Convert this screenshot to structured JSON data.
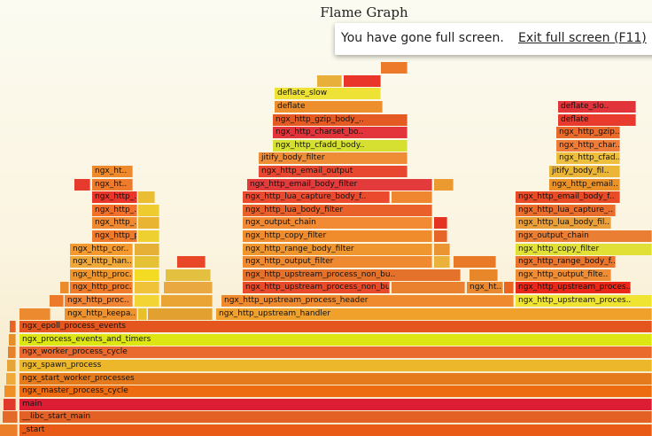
{
  "title": "Flame Graph",
  "fullscreen": {
    "message": "You have gone full screen.",
    "exit_label": "Exit full screen (F11)"
  },
  "frames": [
    {
      "label": "_start",
      "color": "#e85a16",
      "depth": 0,
      "start": 22,
      "end": 736
    },
    {
      "label": "",
      "color": "#ec7d29",
      "depth": 0,
      "start": 0,
      "end": 20
    },
    {
      "label": "__libc_start_main",
      "color": "#e36125",
      "depth": 1,
      "start": 22,
      "end": 736
    },
    {
      "label": "",
      "color": "#e46a2a",
      "depth": 1,
      "start": 3,
      "end": 20
    },
    {
      "label": "main",
      "color": "#dc1d33",
      "depth": 2,
      "start": 22,
      "end": 736
    },
    {
      "label": "",
      "color": "#e23a2a",
      "depth": 2,
      "start": 4,
      "end": 18
    },
    {
      "label": "ngx_master_process_cycle",
      "color": "#ee6c10",
      "depth": 3,
      "start": 22,
      "end": 736
    },
    {
      "label": "",
      "color": "#ee9026",
      "depth": 3,
      "start": 5,
      "end": 18
    },
    {
      "label": "ngx_start_worker_processes",
      "color": "#e57a1d",
      "depth": 4,
      "start": 22,
      "end": 736
    },
    {
      "label": "",
      "color": "#f0aa3a",
      "depth": 4,
      "start": 7,
      "end": 18
    },
    {
      "label": "ngx_spawn_process",
      "color": "#ecb72b",
      "depth": 5,
      "start": 22,
      "end": 736
    },
    {
      "label": "",
      "color": "#e5a538",
      "depth": 5,
      "start": 8,
      "end": 18
    },
    {
      "label": "ngx_worker_process_cycle",
      "color": "#ea6a2d",
      "depth": 6,
      "start": 22,
      "end": 736
    },
    {
      "label": "",
      "color": "#e6822a",
      "depth": 6,
      "start": 9,
      "end": 18
    },
    {
      "label": "ngx_process_events_and_timers",
      "color": "#dde512",
      "depth": 7,
      "start": 22,
      "end": 736
    },
    {
      "label": "",
      "color": "#e58f28",
      "depth": 7,
      "start": 10,
      "end": 18
    },
    {
      "label": "ngx_epoll_process_events",
      "color": "#e4561e",
      "depth": 8,
      "start": 22,
      "end": 736
    },
    {
      "label": "",
      "color": "#e86426",
      "depth": 8,
      "start": 11,
      "end": 18
    },
    {
      "label": "",
      "color": "#ec8a30",
      "depth": 9,
      "start": 22,
      "end": 57
    },
    {
      "label": "ngx_http_keepa..",
      "color": "#ee922d",
      "depth": 9,
      "start": 73,
      "end": 155
    },
    {
      "label": "",
      "color": "#e8c02a",
      "depth": 9,
      "start": 156,
      "end": 166
    },
    {
      "label": "",
      "color": "#e2a030",
      "depth": 9,
      "start": 167,
      "end": 240
    },
    {
      "label": "ngx_http_upstream_handler",
      "color": "#f0a12c",
      "depth": 9,
      "start": 244,
      "end": 736
    },
    {
      "label": "",
      "color": "#ec7a2a",
      "depth": 10,
      "start": 56,
      "end": 72
    },
    {
      "label": "ngx_http_proc..",
      "color": "#f18536",
      "depth": 10,
      "start": 73,
      "end": 150
    },
    {
      "label": "",
      "color": "#f2d535",
      "depth": 10,
      "start": 152,
      "end": 180
    },
    {
      "label": "",
      "color": "#e9a433",
      "depth": 10,
      "start": 182,
      "end": 240
    },
    {
      "label": "ngx_http_upstream_process_header",
      "color": "#ef8b2e",
      "depth": 10,
      "start": 250,
      "end": 580
    },
    {
      "label": "ngx_http_upstream_proces..",
      "color": "#eee431",
      "depth": 10,
      "start": 582,
      "end": 736
    },
    {
      "label": "",
      "color": "#ea8c2c",
      "depth": 11,
      "start": 68,
      "end": 78
    },
    {
      "label": "ngx_http_proc..",
      "color": "#ef7a2a",
      "depth": 11,
      "start": 79,
      "end": 150
    },
    {
      "label": "",
      "color": "#f0c23a",
      "depth": 11,
      "start": 152,
      "end": 180
    },
    {
      "label": "",
      "color": "#e9a840",
      "depth": 11,
      "start": 185,
      "end": 240
    },
    {
      "label": "ngx_http_upstream_process_non_bu..",
      "color": "#e94a2a",
      "depth": 11,
      "start": 274,
      "end": 440
    },
    {
      "label": "",
      "color": "#e9812e",
      "depth": 11,
      "start": 442,
      "end": 525
    },
    {
      "label": "ngx_ht..",
      "color": "#ea8830",
      "depth": 11,
      "start": 527,
      "end": 568
    },
    {
      "label": "",
      "color": "#ea6422",
      "depth": 11,
      "start": 569,
      "end": 580
    },
    {
      "label": "ngx_http_upstream_proces..",
      "color": "#e9281a",
      "depth": 11,
      "start": 582,
      "end": 712
    },
    {
      "label": "ngx_http_proc..",
      "color": "#ef962c",
      "depth": 12,
      "start": 79,
      "end": 150
    },
    {
      "label": "",
      "color": "#f2db22",
      "depth": 12,
      "start": 152,
      "end": 180
    },
    {
      "label": "",
      "color": "#e4c040",
      "depth": 12,
      "start": 187,
      "end": 238
    },
    {
      "label": "ngx_http_upstream_process_non_bu..",
      "color": "#e5722a",
      "depth": 12,
      "start": 274,
      "end": 520
    },
    {
      "label": "",
      "color": "#e8872a",
      "depth": 12,
      "start": 530,
      "end": 562
    },
    {
      "label": "ngx_http_output_filte..",
      "color": "#ee8d34",
      "depth": 12,
      "start": 582,
      "end": 690
    },
    {
      "label": "ngx_http_han..",
      "color": "#f0a838",
      "depth": 13,
      "start": 79,
      "end": 150
    },
    {
      "label": "",
      "color": "#e5c235",
      "depth": 13,
      "start": 152,
      "end": 180
    },
    {
      "label": "",
      "color": "#e84828",
      "depth": 13,
      "start": 200,
      "end": 232
    },
    {
      "label": "ngx_http_output_filter",
      "color": "#f08a30",
      "depth": 13,
      "start": 274,
      "end": 488
    },
    {
      "label": "",
      "color": "#eab23a",
      "depth": 13,
      "start": 490,
      "end": 508
    },
    {
      "label": "",
      "color": "#e87a28",
      "depth": 13,
      "start": 512,
      "end": 560
    },
    {
      "label": "ngx_http_range_body_f..",
      "color": "#e9762c",
      "depth": 13,
      "start": 582,
      "end": 695
    },
    {
      "label": "ngx_http_cor..",
      "color": "#f59a2e",
      "depth": 14,
      "start": 79,
      "end": 150
    },
    {
      "label": "",
      "color": "#e5b035",
      "depth": 14,
      "start": 152,
      "end": 180
    },
    {
      "label": "ngx_http_range_body_filter",
      "color": "#f0962e",
      "depth": 14,
      "start": 274,
      "end": 488
    },
    {
      "label": "",
      "color": "#ea9432",
      "depth": 14,
      "start": 490,
      "end": 508
    },
    {
      "label": "ngx_http_copy_filter",
      "color": "#e0e036",
      "depth": 14,
      "start": 582,
      "end": 736
    },
    {
      "label": "ngx_http_proc..",
      "color": "#ef7a2a",
      "depth": 15,
      "start": 104,
      "end": 155
    },
    {
      "label": "",
      "color": "#eed131",
      "depth": 15,
      "start": 156,
      "end": 180
    },
    {
      "label": "ngx_http_copy_filter",
      "color": "#f08c2c",
      "depth": 15,
      "start": 274,
      "end": 488
    },
    {
      "label": "",
      "color": "#e6662a",
      "depth": 15,
      "start": 490,
      "end": 505
    },
    {
      "label": "ngx_output_chain",
      "color": "#ea7e32",
      "depth": 15,
      "start": 582,
      "end": 736
    },
    {
      "label": "ngx_http_..",
      "color": "#ef8a33",
      "depth": 16,
      "start": 104,
      "end": 155
    },
    {
      "label": "",
      "color": "#e8b432",
      "depth": 16,
      "start": 156,
      "end": 180
    },
    {
      "label": "ngx_output_chain",
      "color": "#f18a33",
      "depth": 16,
      "start": 274,
      "end": 488
    },
    {
      "label": "",
      "color": "#e43320",
      "depth": 16,
      "start": 490,
      "end": 505
    },
    {
      "label": "ngx_http_lua_body_fil..",
      "color": "#e9a03a",
      "depth": 16,
      "start": 582,
      "end": 690
    },
    {
      "label": "ngx_http_..",
      "color": "#f2702a",
      "depth": 17,
      "start": 104,
      "end": 155
    },
    {
      "label": "",
      "color": "#eecb2f",
      "depth": 17,
      "start": 156,
      "end": 180
    },
    {
      "label": "ngx_http_lua_body_filter",
      "color": "#e9602a",
      "depth": 17,
      "start": 274,
      "end": 488
    },
    {
      "label": "ngx_http_lua_capture_..",
      "color": "#ea6d2b",
      "depth": 17,
      "start": 582,
      "end": 695
    },
    {
      "label": "ngx_http_..",
      "color": "#e9352a",
      "depth": 18,
      "start": 104,
      "end": 155
    },
    {
      "label": "",
      "color": "#eabd32",
      "depth": 18,
      "start": 156,
      "end": 175
    },
    {
      "label": "ngx_http_lua_capture_body_f..",
      "color": "#ec4a2f",
      "depth": 18,
      "start": 274,
      "end": 440
    },
    {
      "label": "",
      "color": "#ee8730",
      "depth": 18,
      "start": 442,
      "end": 488
    },
    {
      "label": "ngx_http_email_body_f..",
      "color": "#e84b26",
      "depth": 18,
      "start": 582,
      "end": 700
    },
    {
      "label": "ngx_ht..",
      "color": "#ee7b2b",
      "depth": 19,
      "start": 104,
      "end": 150
    },
    {
      "label": "",
      "color": "#e63a2c",
      "depth": 19,
      "start": 84,
      "end": 102
    },
    {
      "label": "ngx_http_email_body_filter",
      "color": "#e33a3b",
      "depth": 19,
      "start": 279,
      "end": 488
    },
    {
      "label": "",
      "color": "#ea9a2f",
      "depth": 19,
      "start": 490,
      "end": 512
    },
    {
      "label": "ngx_http_email..",
      "color": "#ea9228",
      "depth": 19,
      "start": 620,
      "end": 700
    },
    {
      "label": "ngx_ht..",
      "color": "#ee8a2c",
      "depth": 20,
      "start": 104,
      "end": 150
    },
    {
      "label": "ngx_http_email_output",
      "color": "#e84730",
      "depth": 20,
      "start": 292,
      "end": 460
    },
    {
      "label": "jitify_body_fil..",
      "color": "#ebb536",
      "depth": 20,
      "start": 620,
      "end": 700
    },
    {
      "label": "jitify_body_filter",
      "color": "#ef8d36",
      "depth": 21,
      "start": 292,
      "end": 460
    },
    {
      "label": "ngx_http_cfad..",
      "color": "#eebf3d",
      "depth": 21,
      "start": 628,
      "end": 700
    },
    {
      "label": "ngx_http_cfadd_body..",
      "color": "#d5e031",
      "depth": 22,
      "start": 308,
      "end": 460
    },
    {
      "label": "ngx_http_char..",
      "color": "#ef7d3a",
      "depth": 22,
      "start": 628,
      "end": 700
    },
    {
      "label": "ngx_http_charset_bo..",
      "color": "#e3343b",
      "depth": 23,
      "start": 308,
      "end": 460
    },
    {
      "label": "ngx_http_gzip..",
      "color": "#e96a2b",
      "depth": 23,
      "start": 628,
      "end": 700
    },
    {
      "label": "ngx_http_gzip_body_..",
      "color": "#e45a22",
      "depth": 24,
      "start": 308,
      "end": 460
    },
    {
      "label": "deflate",
      "color": "#e93a2e",
      "depth": 24,
      "start": 630,
      "end": 718
    },
    {
      "label": "deflate",
      "color": "#ec8f2c",
      "depth": 25,
      "start": 310,
      "end": 432
    },
    {
      "label": "deflate_slo..",
      "color": "#e2343b",
      "depth": 25,
      "start": 630,
      "end": 718
    },
    {
      "label": "deflate_slow",
      "color": "#eee236",
      "depth": 26,
      "start": 310,
      "end": 430
    },
    {
      "label": "",
      "color": "#e9352a",
      "depth": 27,
      "start": 388,
      "end": 430
    },
    {
      "label": "",
      "color": "#e8b03a",
      "depth": 27,
      "start": 358,
      "end": 386
    },
    {
      "label": "",
      "color": "#ec7a2a",
      "depth": 28,
      "start": 430,
      "end": 460
    }
  ]
}
